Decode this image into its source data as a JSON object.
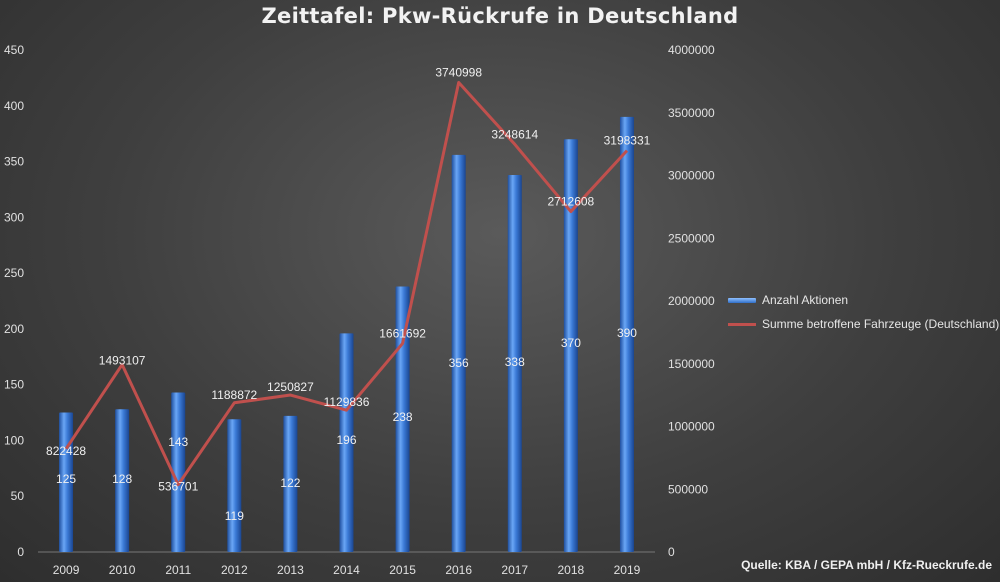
{
  "title": "Zeittafel: Pkw-Rückrufe in Deutschland",
  "source": "Quelle: KBA / GEPA mbH / Kfz-Rueckrufe.de",
  "colors": {
    "bar": "#3a7bd5",
    "line": "#c0504d",
    "background": "#444444"
  },
  "legend": {
    "bars": "Anzahl Aktionen",
    "line": "Summe betroffene Fahrzeuge (Deutschland)"
  },
  "chart_data": {
    "type": "bar",
    "categories": [
      "2009",
      "2010",
      "2011",
      "2012",
      "2013",
      "2014",
      "2015",
      "2016",
      "2017",
      "2018",
      "2019"
    ],
    "series": [
      {
        "name": "Anzahl Aktionen",
        "type": "bar",
        "axis": "left",
        "values": [
          125,
          128,
          143,
          119,
          122,
          196,
          238,
          356,
          338,
          370,
          390
        ],
        "labels": [
          "125",
          "128",
          "143",
          "119",
          "122",
          "196",
          "238",
          "356",
          "338",
          "370",
          "390"
        ]
      },
      {
        "name": "Summe betroffene Fahrzeuge (Deutschland)",
        "type": "line",
        "axis": "right",
        "values": [
          822428,
          1493107,
          536701,
          1188872,
          1250827,
          1129836,
          1661692,
          3740998,
          3248614,
          2712608,
          3198331
        ],
        "labels": [
          "822428",
          "1493107",
          "536701",
          "1188872",
          "1250827",
          "1129836",
          "1661692",
          "3740998",
          "3248614",
          "2712608",
          "3198331"
        ]
      }
    ],
    "y_left": {
      "ylim": [
        0,
        450
      ],
      "ticks": [
        "0",
        "50",
        "100",
        "150",
        "200",
        "250",
        "300",
        "350",
        "400",
        "450"
      ]
    },
    "y_right": {
      "ylim": [
        0,
        4000000
      ],
      "ticks": [
        "0",
        "500000",
        "1000000",
        "1500000",
        "2000000",
        "2500000",
        "3000000",
        "3500000",
        "4000000"
      ]
    },
    "grid": false,
    "legend_position": "right"
  }
}
